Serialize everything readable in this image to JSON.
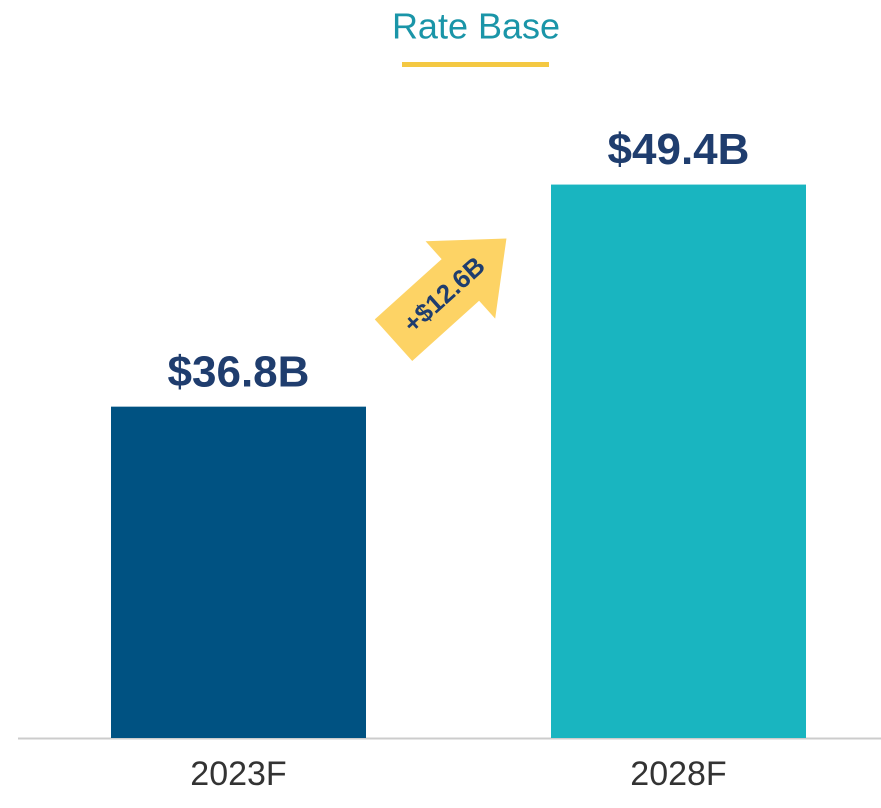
{
  "chart_data": {
    "type": "bar",
    "title": "Rate Base",
    "categories": [
      "2023F",
      "2028F"
    ],
    "values": [
      36.8,
      49.4
    ],
    "value_labels": [
      "$36.8B",
      "$49.4B"
    ],
    "colors": [
      "#005282",
      "#19b5c0"
    ],
    "annotation": "+$12.6B",
    "ylim": [
      18,
      50
    ]
  }
}
